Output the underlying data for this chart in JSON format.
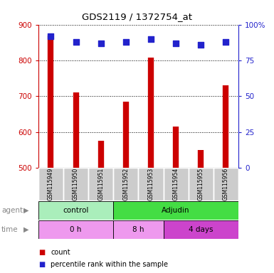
{
  "title": "GDS2119 / 1372754_at",
  "samples": [
    "GSM115949",
    "GSM115950",
    "GSM115951",
    "GSM115952",
    "GSM115953",
    "GSM115954",
    "GSM115955",
    "GSM115956"
  ],
  "counts": [
    870,
    710,
    575,
    685,
    808,
    615,
    550,
    730
  ],
  "percentiles": [
    92,
    88,
    87,
    88,
    90,
    87,
    86,
    88
  ],
  "ylim_left": [
    500,
    900
  ],
  "ylim_right": [
    0,
    100
  ],
  "yticks_left": [
    500,
    600,
    700,
    800,
    900
  ],
  "yticks_right": [
    0,
    25,
    50,
    75,
    100
  ],
  "bar_color": "#cc0000",
  "dot_color": "#2222cc",
  "left_axis_color": "#cc0000",
  "right_axis_color": "#2222cc",
  "agent_groups": [
    {
      "label": "control",
      "start": 0,
      "end": 3,
      "color": "#aaeebb"
    },
    {
      "label": "Adjudin",
      "start": 3,
      "end": 8,
      "color": "#44dd44"
    }
  ],
  "time_groups": [
    {
      "label": "0 h",
      "start": 0,
      "end": 3,
      "color": "#ee99ee"
    },
    {
      "label": "8 h",
      "start": 3,
      "end": 5,
      "color": "#ee99ee"
    },
    {
      "label": "4 days",
      "start": 5,
      "end": 8,
      "color": "#cc44cc"
    }
  ],
  "legend_count_label": "count",
  "legend_pct_label": "percentile rank within the sample",
  "bg_color": "#ffffff",
  "sample_box_color": "#cccccc"
}
